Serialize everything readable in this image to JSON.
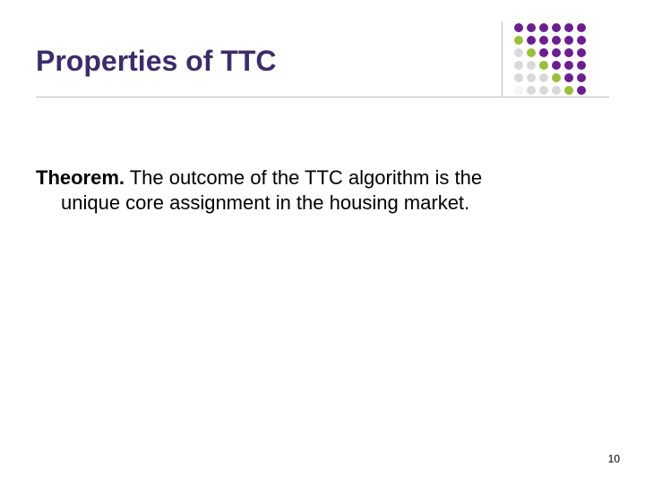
{
  "title": {
    "text": "Properties of TTC",
    "color": "#3a2d6b"
  },
  "body": {
    "theorem_label": "Theorem.",
    "line1": " The outcome of the TTC algorithm is the",
    "line2": "unique core assignment in the housing market.",
    "text_color": "#000000"
  },
  "page_number": "10",
  "decor": {
    "rows": 6,
    "cols": 6,
    "dot_size": 10,
    "spacing": 14,
    "color_matrix": [
      [
        "#6b1f8f",
        "#6b1f8f",
        "#6b1f8f",
        "#6b1f8f",
        "#6b1f8f",
        "#6b1f8f"
      ],
      [
        "#9bbf3a",
        "#6b1f8f",
        "#6b1f8f",
        "#6b1f8f",
        "#6b1f8f",
        "#6b1f8f"
      ],
      [
        "#d9d9d9",
        "#9bbf3a",
        "#6b1f8f",
        "#6b1f8f",
        "#6b1f8f",
        "#6b1f8f"
      ],
      [
        "#d9d9d9",
        "#d9d9d9",
        "#9bbf3a",
        "#6b1f8f",
        "#6b1f8f",
        "#6b1f8f"
      ],
      [
        "#d9d9d9",
        "#d9d9d9",
        "#d9d9d9",
        "#9bbf3a",
        "#6b1f8f",
        "#6b1f8f"
      ],
      [
        "#f5f5f5",
        "#d9d9d9",
        "#d9d9d9",
        "#d9d9d9",
        "#9bbf3a",
        "#6b1f8f"
      ]
    ]
  }
}
